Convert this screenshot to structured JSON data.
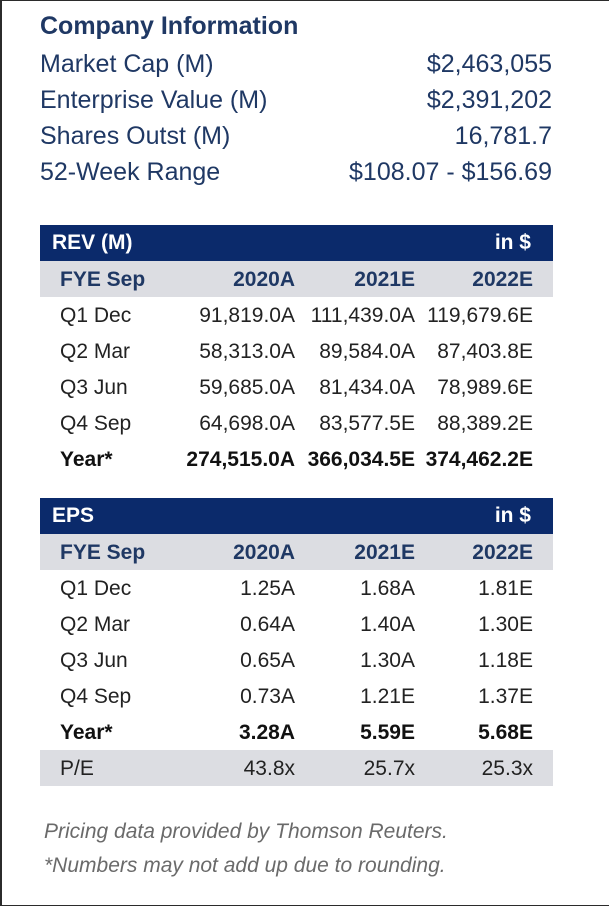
{
  "company": {
    "title": "Company Information",
    "rows": [
      {
        "label": "Market Cap (M)",
        "value": "$2,463,055"
      },
      {
        "label": "Enterprise Value (M)",
        "value": "$2,391,202"
      },
      {
        "label": "Shares Outst (M)",
        "value": "16,781.7"
      },
      {
        "label": "52-Week Range",
        "value": "$108.07 - $156.69"
      }
    ]
  },
  "revenue": {
    "title": "REV (M)",
    "unit": "in $",
    "columns": [
      "FYE Sep",
      "2020A",
      "2021E",
      "2022E"
    ],
    "rows": [
      [
        "Q1 Dec",
        "91,819.0A",
        "111,439.0A",
        "119,679.6E"
      ],
      [
        "Q2 Mar",
        "58,313.0A",
        "89,584.0A",
        "87,403.8E"
      ],
      [
        "Q3 Jun",
        "59,685.0A",
        "81,434.0A",
        "78,989.6E"
      ],
      [
        "Q4 Sep",
        "64,698.0A",
        "83,577.5E",
        "88,389.2E"
      ],
      [
        "Year*",
        "274,515.0A",
        "366,034.5E",
        "374,462.2E"
      ]
    ]
  },
  "eps": {
    "title": "EPS",
    "unit": "in $",
    "columns": [
      "FYE Sep",
      "2020A",
      "2021E",
      "2022E"
    ],
    "rows": [
      [
        "Q1 Dec",
        "1.25A",
        "1.68A",
        "1.81E"
      ],
      [
        "Q2 Mar",
        "0.64A",
        "1.40A",
        "1.30E"
      ],
      [
        "Q3 Jun",
        "0.65A",
        "1.30A",
        "1.18E"
      ],
      [
        "Q4 Sep",
        "0.73A",
        "1.21E",
        "1.37E"
      ],
      [
        "Year*",
        "3.28A",
        "5.59E",
        "5.68E"
      ],
      [
        "P/E",
        "43.8x",
        "25.7x",
        "25.3x"
      ]
    ]
  },
  "footnotes": {
    "source": "Pricing data provided by Thomson Reuters.",
    "rounding": "*Numbers may not add up due to rounding."
  }
}
